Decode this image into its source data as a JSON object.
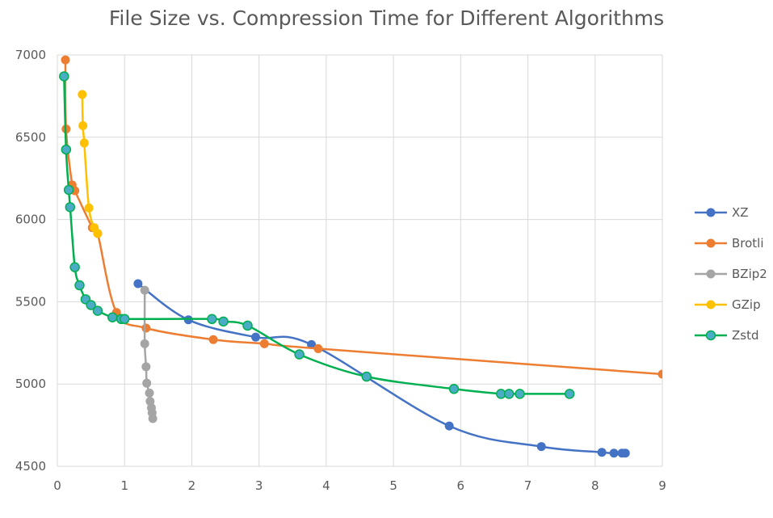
{
  "chart_data": {
    "type": "scatter",
    "title": "File Size vs. Compression Time for Different Algorithms",
    "xlabel": "",
    "ylabel": "",
    "xlim": [
      0,
      9
    ],
    "ylim": [
      4500,
      7000
    ],
    "x_ticks": [
      0,
      1,
      2,
      3,
      4,
      5,
      6,
      7,
      8,
      9
    ],
    "y_ticks": [
      4500,
      5000,
      5500,
      6000,
      6500,
      7000
    ],
    "grid": true,
    "smooth_lines": true,
    "legend_position": "right",
    "series": [
      {
        "name": "XZ",
        "color": "#4472C4",
        "points": [
          [
            1.2,
            5610
          ],
          [
            1.95,
            5390
          ],
          [
            2.95,
            5285
          ],
          [
            3.78,
            5240
          ],
          [
            5.83,
            4745
          ],
          [
            7.2,
            4620
          ],
          [
            8.1,
            4585
          ],
          [
            8.28,
            4580
          ],
          [
            8.4,
            4580
          ],
          [
            8.45,
            4580
          ]
        ]
      },
      {
        "name": "Brotli",
        "color": "#ED7D31",
        "points": [
          [
            0.12,
            6970
          ],
          [
            0.13,
            6550
          ],
          [
            0.22,
            6210
          ],
          [
            0.26,
            6175
          ],
          [
            0.52,
            5950
          ],
          [
            0.6,
            5915
          ],
          [
            0.88,
            5435
          ],
          [
            1.32,
            5340
          ],
          [
            2.32,
            5270
          ],
          [
            3.08,
            5245
          ],
          [
            3.88,
            5215
          ],
          [
            9.0,
            5060
          ]
        ]
      },
      {
        "name": "BZip2",
        "color": "#A5A5A5",
        "points": [
          [
            1.3,
            5570
          ],
          [
            1.3,
            5245
          ],
          [
            1.32,
            5105
          ],
          [
            1.33,
            5005
          ],
          [
            1.37,
            4945
          ],
          [
            1.38,
            4895
          ],
          [
            1.4,
            4855
          ],
          [
            1.41,
            4825
          ],
          [
            1.42,
            4790
          ]
        ]
      },
      {
        "name": "GZip",
        "color": "#FFC000",
        "points": [
          [
            0.37,
            6760
          ],
          [
            0.38,
            6570
          ],
          [
            0.4,
            6465
          ],
          [
            0.47,
            6070
          ],
          [
            0.55,
            5950
          ],
          [
            0.6,
            5915
          ]
        ]
      },
      {
        "name": "Zstd",
        "color": "#4BACC6",
        "line_color": "#00B050",
        "points": [
          [
            0.1,
            6870
          ],
          [
            0.13,
            6425
          ],
          [
            0.17,
            6180
          ],
          [
            0.19,
            6075
          ],
          [
            0.26,
            5710
          ],
          [
            0.33,
            5600
          ],
          [
            0.42,
            5515
          ],
          [
            0.5,
            5480
          ],
          [
            0.6,
            5445
          ],
          [
            0.82,
            5405
          ],
          [
            0.95,
            5395
          ],
          [
            1.0,
            5395
          ],
          [
            2.3,
            5395
          ],
          [
            2.47,
            5380
          ],
          [
            2.83,
            5355
          ],
          [
            3.6,
            5180
          ],
          [
            4.6,
            5045
          ],
          [
            5.9,
            4970
          ],
          [
            6.6,
            4940
          ],
          [
            6.72,
            4940
          ],
          [
            6.88,
            4940
          ],
          [
            7.62,
            4940
          ]
        ]
      }
    ]
  }
}
